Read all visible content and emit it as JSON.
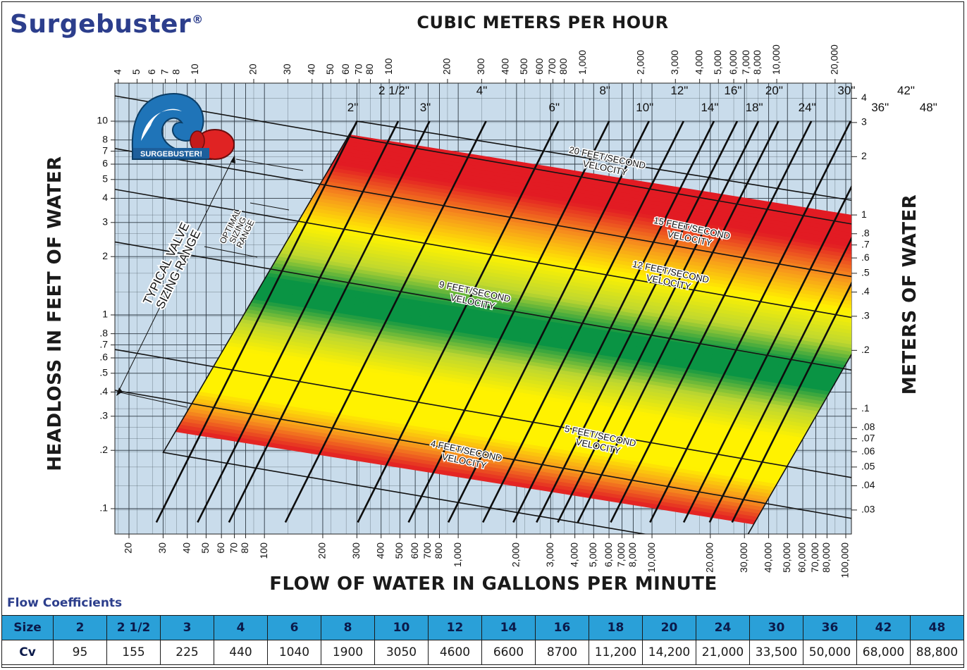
{
  "brand": {
    "name": "Surgebuster",
    "mark": "®"
  },
  "logo": {
    "text": "SURGEBUSTER!"
  },
  "chart_data": {
    "type": "line",
    "title": "",
    "xlabel_top": "CUBIC METERS PER HOUR",
    "xlabel": "FLOW OF WATER IN GALLONS PER MINUTE",
    "ylabel": "HEADLOSS IN FEET OF WATER",
    "ylabel_right": "METERS OF WATER",
    "xscale": "log",
    "yscale": "log",
    "xlim": [
      15,
      105000
    ],
    "ylim": [
      0.08,
      15
    ],
    "x_ticks_gpm": [
      "20",
      "30",
      "40",
      "50",
      "60",
      "70",
      "80",
      "100",
      "200",
      "300",
      "400",
      "500",
      "600",
      "700",
      "800",
      "1,000",
      "2,000",
      "3,000",
      "4,000",
      "5,000",
      "6,000",
      "7,000",
      "8,000",
      "10,000",
      "20,000",
      "30,000",
      "40,000",
      "50,000",
      "60,000",
      "70,000",
      "80,000",
      "100,000"
    ],
    "x_ticks_m3h": [
      "4",
      "5",
      "6",
      "7",
      "8",
      "10",
      "20",
      "30",
      "40",
      "50",
      "60",
      "70",
      "80",
      "100",
      "200",
      "300",
      "400",
      "500",
      "600",
      "700",
      "800",
      "1,000",
      "2,000",
      "3,000",
      "4,000",
      "5,000",
      "6,000",
      "7,000",
      "8,000",
      "10,000",
      "20,000"
    ],
    "y_ticks_ft": [
      "10",
      "8",
      "7",
      "6",
      "5",
      "4",
      "3",
      "2",
      "1",
      ".8",
      ".7",
      ".6",
      ".5",
      ".4",
      ".3",
      ".2",
      ".1"
    ],
    "y_ticks_m": [
      "4",
      "3",
      "2",
      "1",
      ".8",
      ".7",
      ".6",
      ".5",
      ".4",
      ".3",
      ".2",
      ".1",
      ".08",
      ".07",
      ".06",
      ".05",
      ".04",
      ".03"
    ],
    "valve_sizes": [
      {
        "label": "2\"",
        "cv": 95
      },
      {
        "label": "2 1/2\"",
        "cv": 155
      },
      {
        "label": "3\"",
        "cv": 225
      },
      {
        "label": "4\"",
        "cv": 440
      },
      {
        "label": "6\"",
        "cv": 1040
      },
      {
        "label": "8\"",
        "cv": 1900
      },
      {
        "label": "10\"",
        "cv": 3050
      },
      {
        "label": "12\"",
        "cv": 4600
      },
      {
        "label": "14\"",
        "cv": 6600
      },
      {
        "label": "16\"",
        "cv": 8700
      },
      {
        "label": "18\"",
        "cv": 11200
      },
      {
        "label": "20\"",
        "cv": 14200
      },
      {
        "label": "24\"",
        "cv": 21000
      },
      {
        "label": "30\"",
        "cv": 33500
      },
      {
        "label": "36\"",
        "cv": 50000
      },
      {
        "label": "42\"",
        "cv": 68000
      },
      {
        "label": "48\"",
        "cv": 88800
      }
    ],
    "velocity_lines": [
      {
        "label_1": "20 FEET/SECOND",
        "label_2": "VELOCITY",
        "fps": 20
      },
      {
        "label_1": "15 FEET/SECOND",
        "label_2": "VELOCITY",
        "fps": 15
      },
      {
        "label_1": "12 FEET/SECOND",
        "label_2": "VELOCITY",
        "fps": 12
      },
      {
        "label_1": "9 FEET/SECOND",
        "label_2": "VELOCITY",
        "fps": 9
      },
      {
        "label_1": "5 FEET/SECOND",
        "label_2": "VELOCITY",
        "fps": 5
      },
      {
        "label_1": "4 FEET/SECOND",
        "label_2": "VELOCITY",
        "fps": 4
      }
    ],
    "annotations": {
      "typical_1": "TYPICAL VALVE",
      "typical_2": "SIZING RANGE",
      "optimal_1": "OPTIMAL",
      "optimal_2": "SIZING",
      "optimal_3": "RANGE"
    },
    "band_colors": {
      "red": "#e21b23",
      "orange": "#f7941d",
      "yellow": "#fff200",
      "green": "#0a9444",
      "background": "#c9dceb",
      "grid": "#333333"
    }
  },
  "table": {
    "title": "Flow Coefficients",
    "size_header": "Size",
    "cv_header": "Cv",
    "sizes": [
      "2",
      "2 1/2",
      "3",
      "4",
      "6",
      "8",
      "10",
      "12",
      "14",
      "16",
      "18",
      "20",
      "24",
      "30",
      "36",
      "42",
      "48"
    ],
    "cv": [
      "95",
      "155",
      "225",
      "440",
      "1040",
      "1900",
      "3050",
      "4600",
      "6600",
      "8700",
      "11,200",
      "14,200",
      "21,000",
      "33,500",
      "50,000",
      "68,000",
      "88,800"
    ]
  }
}
